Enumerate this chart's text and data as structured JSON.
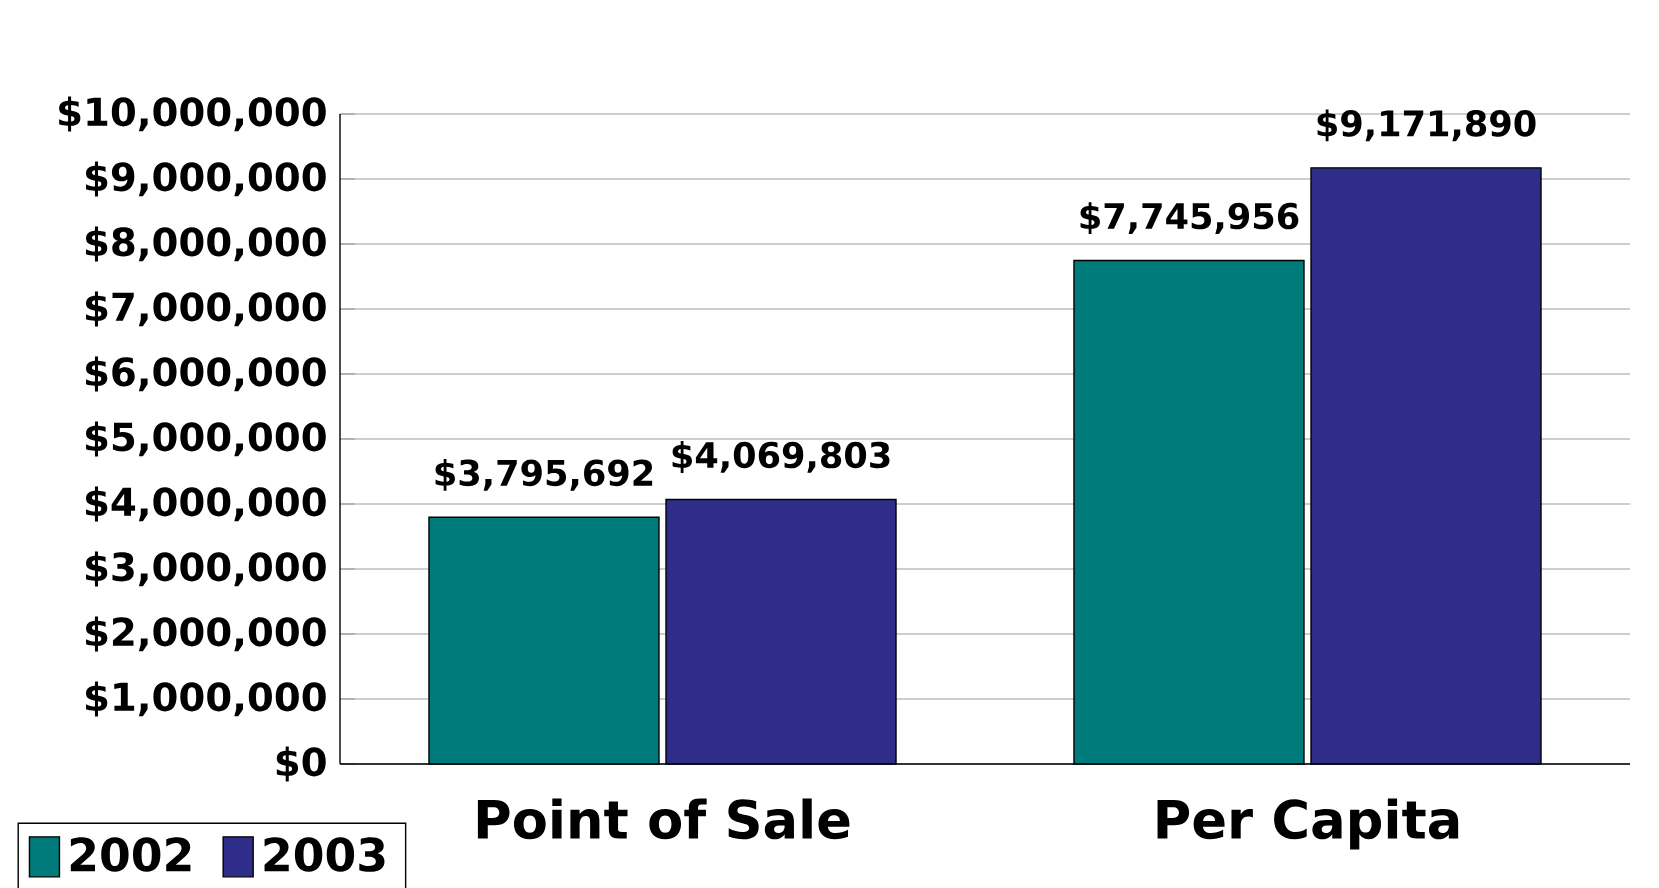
{
  "chart_data": {
    "type": "bar",
    "categories": [
      "Point of Sale",
      "Per Capita"
    ],
    "series": [
      {
        "name": "2002",
        "color": "#007b7b",
        "values": [
          3795692,
          7745956
        ],
        "value_labels": [
          "$3,795,692",
          "$7,745,956"
        ]
      },
      {
        "name": "2003",
        "color": "#2e2e8a",
        "values": [
          4069803,
          9171890
        ],
        "value_labels": [
          "$4,069,803",
          "$9,171,890"
        ]
      }
    ],
    "ylim": [
      0,
      10000000
    ],
    "yticks": [
      {
        "value": 0,
        "label": "$0"
      },
      {
        "value": 1000000,
        "label": "$1,000,000"
      },
      {
        "value": 2000000,
        "label": "$2,000,000"
      },
      {
        "value": 3000000,
        "label": "$3,000,000"
      },
      {
        "value": 4000000,
        "label": "$4,000,000"
      },
      {
        "value": 5000000,
        "label": "$5,000,000"
      },
      {
        "value": 6000000,
        "label": "$6,000,000"
      },
      {
        "value": 7000000,
        "label": "$7,000,000"
      },
      {
        "value": 8000000,
        "label": "$8,000,000"
      },
      {
        "value": 9000000,
        "label": "$9,000,000"
      },
      {
        "value": 10000000,
        "label": "$10,000,000"
      }
    ],
    "grid": "y",
    "legend": "bottom left"
  }
}
